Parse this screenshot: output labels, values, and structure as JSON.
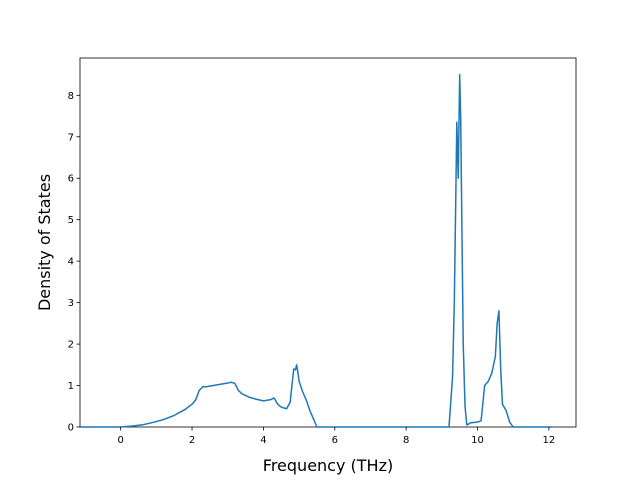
{
  "chart_data": {
    "type": "line",
    "title": "",
    "xlabel": "Frequency (THz)",
    "ylabel": "Density of States",
    "xlim": [
      -1.14,
      12.76
    ],
    "ylim": [
      0,
      8.9
    ],
    "xticks": [
      0,
      2,
      4,
      6,
      8,
      10,
      12
    ],
    "yticks": [
      0,
      1,
      2,
      3,
      4,
      5,
      6,
      7,
      8
    ],
    "grid": false,
    "legend": "none",
    "series": [
      {
        "color": "#1f77b4",
        "x": [
          -1.12,
          -0.5,
          0,
          0.3,
          0.6,
          0.9,
          1.2,
          1.5,
          1.8,
          2.0,
          2.1,
          2.2,
          2.3,
          2.4,
          2.6,
          2.8,
          3.0,
          3.1,
          3.2,
          3.3,
          3.4,
          3.6,
          3.8,
          4.0,
          4.2,
          4.3,
          4.4,
          4.5,
          4.65,
          4.75,
          4.8,
          4.85,
          4.9,
          4.93,
          4.97,
          5.0,
          5.1,
          5.2,
          5.3,
          5.4,
          5.45,
          5.5,
          6.0,
          7.0,
          8.0,
          9.0,
          9.2,
          9.3,
          9.35,
          9.42,
          9.46,
          9.5,
          9.53,
          9.56,
          9.6,
          9.65,
          9.7,
          9.75,
          9.8,
          10.0,
          10.1,
          10.2,
          10.3,
          10.4,
          10.5,
          10.55,
          10.6,
          10.65,
          10.7,
          10.8,
          10.9,
          11.0,
          11.5,
          12.08
        ],
        "y": [
          0,
          0,
          0,
          0.02,
          0.05,
          0.11,
          0.18,
          0.28,
          0.42,
          0.55,
          0.65,
          0.88,
          0.97,
          0.97,
          1.0,
          1.03,
          1.06,
          1.08,
          1.05,
          0.88,
          0.8,
          0.72,
          0.67,
          0.63,
          0.66,
          0.7,
          0.55,
          0.48,
          0.44,
          0.6,
          1.0,
          1.4,
          1.38,
          1.5,
          1.3,
          1.1,
          0.85,
          0.65,
          0.4,
          0.2,
          0.1,
          0,
          0,
          0,
          0,
          0,
          0,
          1.2,
          3.0,
          7.35,
          6.0,
          8.5,
          7.4,
          5.0,
          2.0,
          0.5,
          0.05,
          0.07,
          0.1,
          0.12,
          0.15,
          1.0,
          1.1,
          1.3,
          1.7,
          2.5,
          2.8,
          1.4,
          0.55,
          0.4,
          0.12,
          0,
          0,
          0
        ]
      }
    ]
  }
}
